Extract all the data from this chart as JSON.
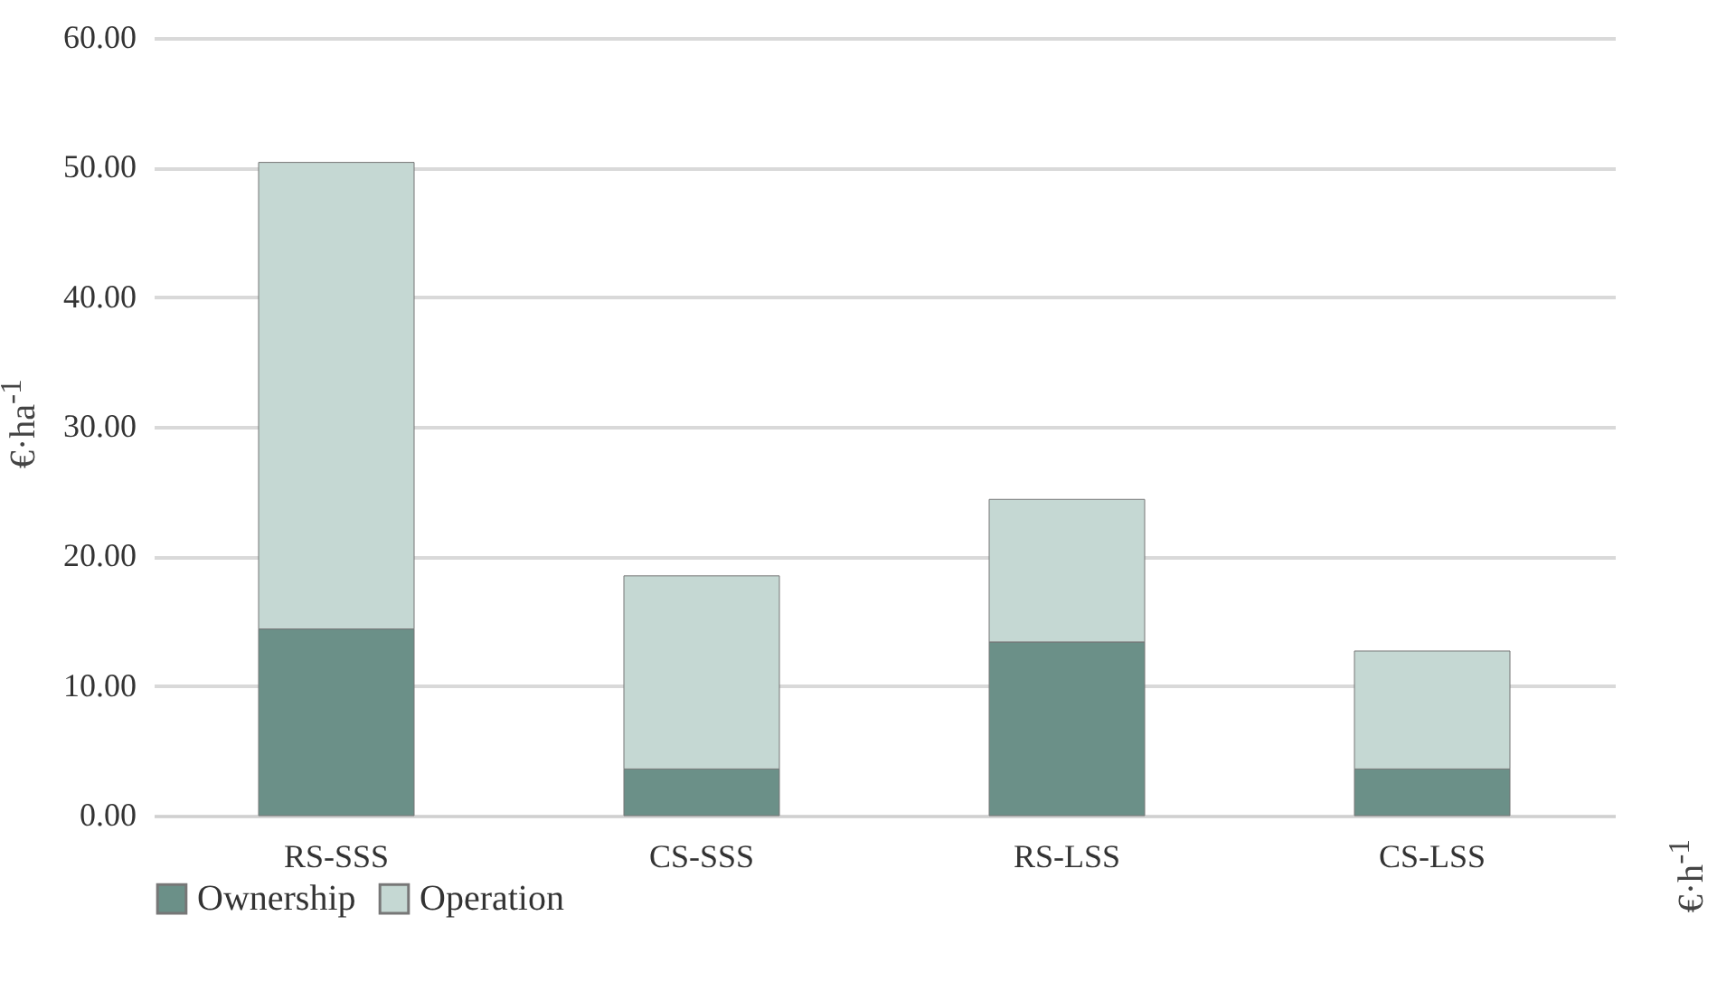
{
  "chart_data": {
    "type": "bar",
    "stacked": true,
    "ylabel": "€·ha$^{-1}$",
    "y2label": "€·h$^{-1}$",
    "categories": [
      "RS-SSS",
      "CS-SSS",
      "RS-LSS",
      "CS-LSS"
    ],
    "series": [
      {
        "name": "Ownership",
        "color": "#6b9088",
        "values": [
          14.4,
          3.6,
          13.4,
          3.6
        ]
      },
      {
        "name": "Operation",
        "color": "#c5d8d3",
        "values": [
          36.0,
          14.9,
          11.0,
          9.1
        ]
      }
    ],
    "ylim": [
      0,
      60
    ],
    "yticks": [
      {
        "value": 0,
        "label": "0.00"
      },
      {
        "value": 10,
        "label": "10.00"
      },
      {
        "value": 20,
        "label": "20.00"
      },
      {
        "value": 30,
        "label": "30.00"
      },
      {
        "value": 40,
        "label": "40.00"
      },
      {
        "value": 50,
        "label": "50.00"
      },
      {
        "value": 60,
        "label": "60.00"
      }
    ],
    "grid": "y",
    "legend": "bottom"
  }
}
